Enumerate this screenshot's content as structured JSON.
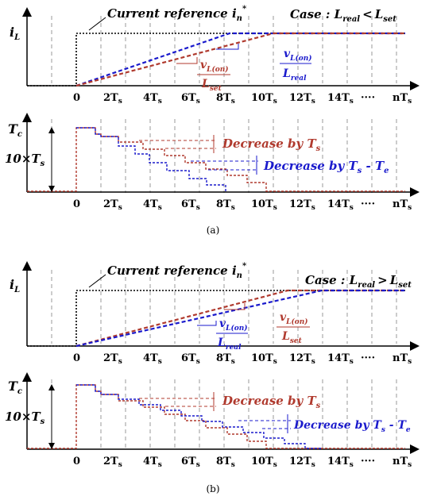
{
  "colors": {
    "red": "#b03a2e",
    "blue": "#1a1acc",
    "black": "#000000",
    "grid": "#9a9a9a"
  },
  "panels": [
    {
      "caption": "(a)",
      "y_label": "i",
      "y_label_sub": "L",
      "current_reference": "Current reference i",
      "current_reference_sub": "n",
      "current_reference_sup": "*",
      "case_text": "Case : L",
      "case_sub1": "real",
      "case_rel": "<",
      "case_l2": "L",
      "case_sub2": "set",
      "upper_slope_num": "v",
      "upper_slope_num_sub": "L(on)",
      "upper_slope_den": "L",
      "upper_slope_den_sub": "real",
      "lower_slope_num": "v",
      "lower_slope_num_sub": "L(on)",
      "lower_slope_den": "L",
      "lower_slope_den_sub": "set",
      "tc_label": "T",
      "tc_label_sub": "c",
      "ten_ts": "10×T",
      "ten_ts_sub": "s",
      "dec_ts": "Decrease by T",
      "dec_ts_sub": "s",
      "dec_tste": "Decrease by T",
      "dec_tste_sub1": "s",
      "dec_tste_mid": " - T",
      "dec_tste_sub2": "e"
    },
    {
      "caption": "(b)",
      "y_label": "i",
      "y_label_sub": "L",
      "current_reference": "Current reference i",
      "current_reference_sub": "n",
      "current_reference_sup": "*",
      "case_text": "Case : L",
      "case_sub1": "real",
      "case_rel": ">",
      "case_l2": "L",
      "case_sub2": "set",
      "upper_slope_num": "v",
      "upper_slope_num_sub": "L(on)",
      "upper_slope_den": "L",
      "upper_slope_den_sub": "set",
      "lower_slope_num": "v",
      "lower_slope_num_sub": "L(on)",
      "lower_slope_den": "L",
      "lower_slope_den_sub": "real",
      "tc_label": "T",
      "tc_label_sub": "c",
      "ten_ts": "10×T",
      "ten_ts_sub": "s",
      "dec_ts": "Decrease by T",
      "dec_ts_sub": "s",
      "dec_tste": "Decrease by T",
      "dec_tste_sub1": "s",
      "dec_tste_mid": " - T",
      "dec_tste_sub2": "e"
    }
  ],
  "ticks": [
    {
      "main": "0",
      "sub": ""
    },
    {
      "main": "2T",
      "sub": "s"
    },
    {
      "main": "4T",
      "sub": "s"
    },
    {
      "main": "6T",
      "sub": "s"
    },
    {
      "main": "8T",
      "sub": "s"
    },
    {
      "main": "10T",
      "sub": "s"
    },
    {
      "main": "12T",
      "sub": "s"
    },
    {
      "main": "14T",
      "sub": "s"
    },
    {
      "main": "····",
      "sub": ""
    },
    {
      "main": "nT",
      "sub": "s"
    }
  ]
}
